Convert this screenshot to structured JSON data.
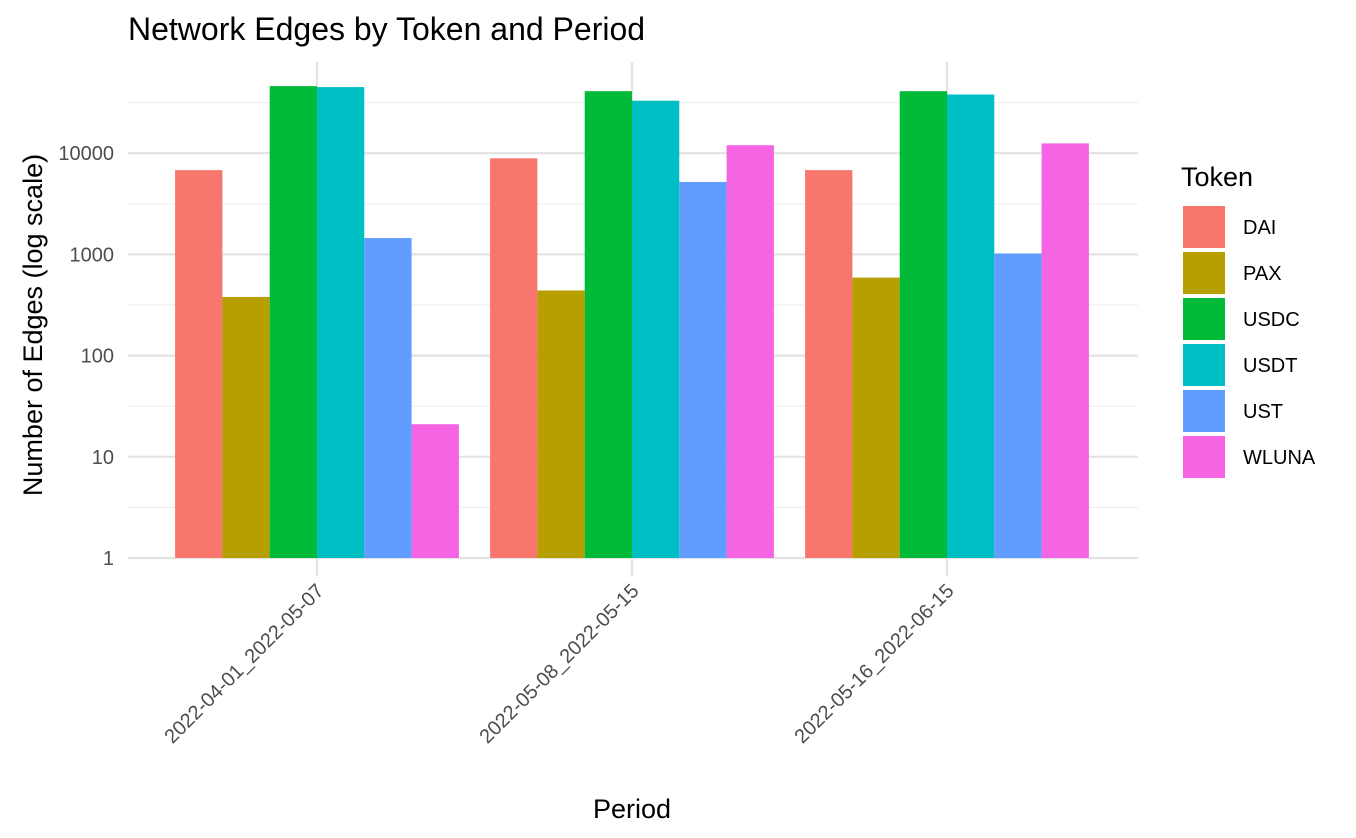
{
  "chart_data": {
    "type": "bar",
    "title": "Network Edges by Token and Period",
    "xlabel": "Period",
    "ylabel": "Number of Edges (log scale)",
    "y_scale": "log10",
    "ylim": [
      1,
      80000
    ],
    "y_ticks": [
      1,
      10,
      100,
      1000,
      10000
    ],
    "y_tick_labels": [
      "1",
      "10",
      "100",
      "1000",
      "10000"
    ],
    "grid": true,
    "legend_title": "Token",
    "legend_position": "right",
    "categories": [
      "2022-04-01_2022-05-07",
      "2022-05-08_2022-05-15",
      "2022-05-16_2022-06-15"
    ],
    "series": [
      {
        "name": "DAI",
        "color": "#F8766D",
        "values": [
          6800,
          8900,
          6800
        ]
      },
      {
        "name": "PAX",
        "color": "#B79F00",
        "values": [
          380,
          440,
          590
        ]
      },
      {
        "name": "USDC",
        "color": "#00BA38",
        "values": [
          46000,
          41000,
          41000
        ]
      },
      {
        "name": "USDT",
        "color": "#00BFC4",
        "values": [
          45000,
          33000,
          38000
        ]
      },
      {
        "name": "UST",
        "color": "#619CFF",
        "values": [
          1450,
          5200,
          1020
        ]
      },
      {
        "name": "WLUNA",
        "color": "#F564E3",
        "values": [
          21,
          12000,
          12500
        ]
      }
    ]
  }
}
